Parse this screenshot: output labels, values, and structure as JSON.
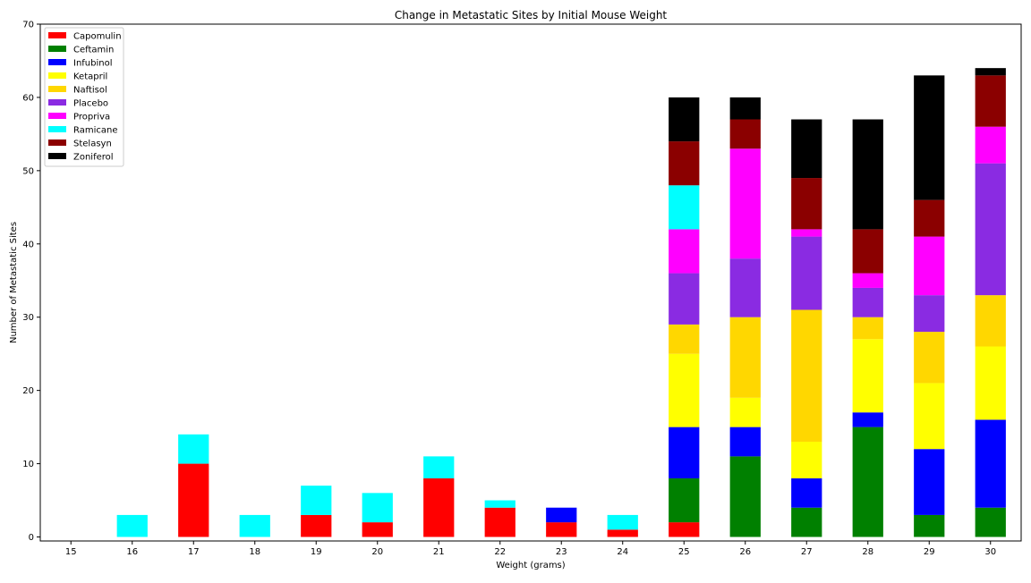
{
  "chart_data": {
    "type": "bar",
    "stacked": true,
    "title": "Change in Metastatic Sites by Initial Mouse Weight",
    "xlabel": "Weight (grams)",
    "ylabel": "Number of Metastatic Sites",
    "ylim": [
      0,
      70
    ],
    "yticks": [
      0,
      10,
      20,
      30,
      40,
      50,
      60,
      70
    ],
    "grid": false,
    "legend_position": "top-left",
    "categories": [
      "15",
      "16",
      "17",
      "18",
      "19",
      "20",
      "21",
      "22",
      "23",
      "24",
      "25",
      "26",
      "27",
      "28",
      "29",
      "30"
    ],
    "series": [
      {
        "name": "Capomulin",
        "color": "#ff0000",
        "values": [
          0,
          0,
          10,
          0,
          3,
          2,
          8,
          4,
          2,
          1,
          2,
          0,
          0,
          0,
          0,
          0
        ]
      },
      {
        "name": "Ceftamin",
        "color": "#008000",
        "values": [
          0,
          0,
          0,
          0,
          0,
          0,
          0,
          0,
          0,
          0,
          6,
          11,
          4,
          15,
          3,
          4
        ]
      },
      {
        "name": "Infubinol",
        "color": "#0000ff",
        "values": [
          0,
          0,
          0,
          0,
          0,
          0,
          0,
          0,
          2,
          0,
          7,
          4,
          4,
          2,
          9,
          12
        ]
      },
      {
        "name": "Ketapril",
        "color": "#ffff00",
        "values": [
          0,
          0,
          0,
          0,
          0,
          0,
          0,
          0,
          0,
          0,
          10,
          4,
          5,
          10,
          9,
          10
        ]
      },
      {
        "name": "Naftisol",
        "color": "#ffd700",
        "values": [
          0,
          0,
          0,
          0,
          0,
          0,
          0,
          0,
          0,
          0,
          4,
          11,
          18,
          3,
          7,
          7
        ]
      },
      {
        "name": "Placebo",
        "color": "#8a2be2",
        "values": [
          0,
          0,
          0,
          0,
          0,
          0,
          0,
          0,
          0,
          0,
          7,
          8,
          10,
          4,
          5,
          18
        ]
      },
      {
        "name": "Propriva",
        "color": "#ff00ff",
        "values": [
          0,
          0,
          0,
          0,
          0,
          0,
          0,
          0,
          0,
          0,
          6,
          15,
          1,
          2,
          8,
          5
        ]
      },
      {
        "name": "Ramicane",
        "color": "#00ffff",
        "values": [
          0,
          3,
          4,
          3,
          4,
          4,
          3,
          1,
          0,
          2,
          6,
          0,
          0,
          0,
          0,
          0
        ]
      },
      {
        "name": "Stelasyn",
        "color": "#8b0000",
        "values": [
          0,
          0,
          0,
          0,
          0,
          0,
          0,
          0,
          0,
          0,
          6,
          4,
          7,
          6,
          5,
          7
        ]
      },
      {
        "name": "Zoniferol",
        "color": "#000000",
        "values": [
          0,
          0,
          0,
          0,
          0,
          0,
          0,
          0,
          0,
          0,
          6,
          3,
          8,
          15,
          17,
          1
        ]
      }
    ]
  }
}
